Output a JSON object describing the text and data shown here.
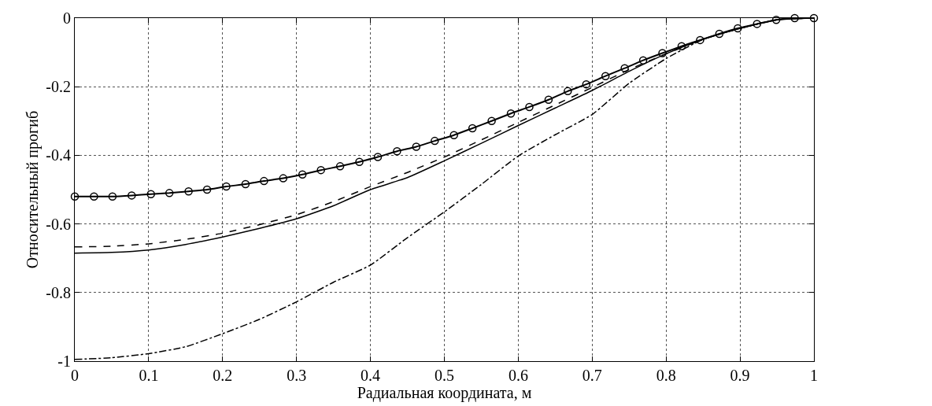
{
  "chart_data": {
    "type": "line",
    "xlabel": "Радиальная координата, м",
    "ylabel": "Относительный прогиб",
    "xlim": [
      0,
      1
    ],
    "ylim": [
      -1,
      0
    ],
    "xticks": [
      0,
      0.1,
      0.2,
      0.3,
      0.4,
      0.5,
      0.6,
      0.7,
      0.8,
      0.9,
      1
    ],
    "yticks": [
      -1,
      -0.8,
      -0.6,
      -0.4,
      -0.2,
      0
    ],
    "grid": true,
    "legend": false,
    "series": [
      {
        "color": "#000000",
        "marker": "circle",
        "line_style": "solid",
        "x": [
          0,
          0.026,
          0.051,
          0.077,
          0.103,
          0.128,
          0.154,
          0.179,
          0.205,
          0.231,
          0.256,
          0.282,
          0.308,
          0.333,
          0.359,
          0.385,
          0.41,
          0.436,
          0.462,
          0.487,
          0.513,
          0.538,
          0.564,
          0.59,
          0.615,
          0.641,
          0.667,
          0.692,
          0.718,
          0.744,
          0.769,
          0.795,
          0.821,
          0.846,
          0.872,
          0.897,
          0.923,
          0.949,
          0.974,
          1
        ],
        "values": [
          -0.52,
          -0.52,
          -0.52,
          -0.517,
          -0.513,
          -0.51,
          -0.505,
          -0.5,
          -0.491,
          -0.484,
          -0.475,
          -0.467,
          -0.456,
          -0.443,
          -0.432,
          -0.419,
          -0.405,
          -0.388,
          -0.375,
          -0.358,
          -0.341,
          -0.321,
          -0.3,
          -0.278,
          -0.259,
          -0.238,
          -0.213,
          -0.193,
          -0.169,
          -0.146,
          -0.123,
          -0.102,
          -0.082,
          -0.064,
          -0.046,
          -0.03,
          -0.017,
          -0.005,
          0,
          0
        ]
      },
      {
        "color": "#000000",
        "marker": "none",
        "line_style": "dashed",
        "x": [
          0,
          0.05,
          0.1,
          0.15,
          0.2,
          0.25,
          0.3,
          0.35,
          0.4,
          0.45,
          0.5,
          0.55,
          0.6,
          0.65,
          0.7,
          0.75,
          0.8,
          0.85,
          0.9,
          0.95,
          1
        ],
        "values": [
          -0.667,
          -0.665,
          -0.658,
          -0.645,
          -0.627,
          -0.602,
          -0.573,
          -0.535,
          -0.491,
          -0.45,
          -0.405,
          -0.355,
          -0.304,
          -0.253,
          -0.202,
          -0.15,
          -0.104,
          -0.062,
          -0.03,
          -0.005,
          0
        ]
      },
      {
        "color": "#000000",
        "marker": "none",
        "line_style": "solid",
        "x": [
          0,
          0.05,
          0.1,
          0.15,
          0.2,
          0.25,
          0.3,
          0.35,
          0.4,
          0.45,
          0.5,
          0.55,
          0.6,
          0.65,
          0.7,
          0.75,
          0.8,
          0.85,
          0.9,
          0.95,
          1
        ],
        "values": [
          -0.685,
          -0.683,
          -0.676,
          -0.66,
          -0.638,
          -0.613,
          -0.585,
          -0.547,
          -0.5,
          -0.465,
          -0.416,
          -0.365,
          -0.313,
          -0.262,
          -0.211,
          -0.155,
          -0.104,
          -0.062,
          -0.03,
          -0.005,
          0
        ]
      },
      {
        "color": "#000000",
        "marker": "none",
        "line_style": "dashdot",
        "x": [
          0,
          0.05,
          0.1,
          0.15,
          0.2,
          0.25,
          0.3,
          0.35,
          0.4,
          0.45,
          0.5,
          0.55,
          0.6,
          0.65,
          0.7,
          0.75,
          0.8,
          0.85,
          0.9,
          0.95,
          1
        ],
        "values": [
          -0.995,
          -0.99,
          -0.978,
          -0.958,
          -0.92,
          -0.878,
          -0.827,
          -0.77,
          -0.72,
          -0.64,
          -0.565,
          -0.485,
          -0.402,
          -0.34,
          -0.281,
          -0.19,
          -0.118,
          -0.062,
          -0.03,
          -0.005,
          0
        ]
      }
    ]
  }
}
